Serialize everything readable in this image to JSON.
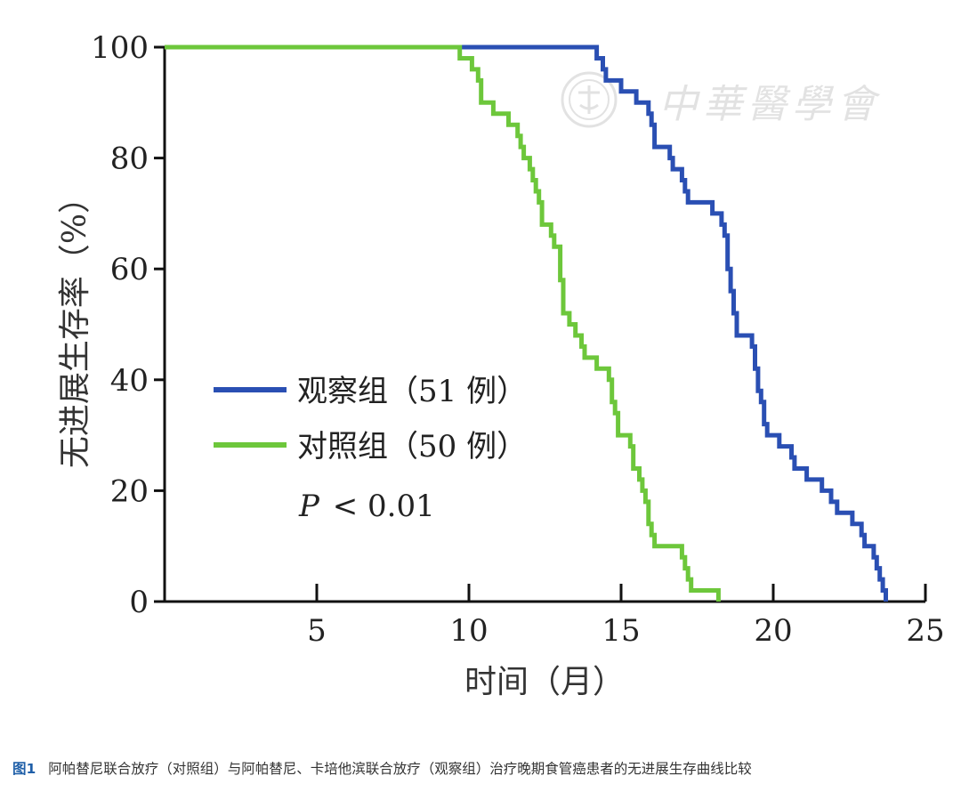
{
  "chart_data": {
    "type": "line",
    "step": true,
    "xlabel": "时间（月）",
    "ylabel": "无进展生存率（%）",
    "xlim": [
      0,
      25
    ],
    "ylim": [
      0,
      100
    ],
    "xticks": [
      5,
      10,
      15,
      20,
      25
    ],
    "yticks": [
      0,
      20,
      40,
      60,
      80,
      100
    ],
    "xtick_labels": [
      "5",
      "10",
      "15",
      "20",
      "25"
    ],
    "ytick_labels": [
      "0",
      "20",
      "40",
      "60",
      "80",
      "100"
    ],
    "legend_position": "center-left",
    "annotation": {
      "p_label": "P",
      "p_rest": "< 0.01"
    },
    "series": [
      {
        "name": "观察组（51 例）",
        "color": "#2a4fb3",
        "points": [
          [
            0,
            100
          ],
          [
            14.2,
            100
          ],
          [
            14.2,
            98
          ],
          [
            14.4,
            98
          ],
          [
            14.4,
            96
          ],
          [
            14.5,
            96
          ],
          [
            14.5,
            94
          ],
          [
            15.0,
            94
          ],
          [
            15.0,
            92
          ],
          [
            15.5,
            92
          ],
          [
            15.5,
            90
          ],
          [
            15.9,
            90
          ],
          [
            15.9,
            88
          ],
          [
            16.0,
            88
          ],
          [
            16.0,
            86
          ],
          [
            16.1,
            86
          ],
          [
            16.1,
            84
          ],
          [
            16.1,
            82
          ],
          [
            16.6,
            82
          ],
          [
            16.6,
            80
          ],
          [
            16.7,
            80
          ],
          [
            16.7,
            78
          ],
          [
            17.0,
            78
          ],
          [
            17.0,
            76
          ],
          [
            17.1,
            76
          ],
          [
            17.1,
            74
          ],
          [
            17.2,
            74
          ],
          [
            17.2,
            72
          ],
          [
            18.0,
            72
          ],
          [
            18.0,
            70
          ],
          [
            18.3,
            70
          ],
          [
            18.3,
            68
          ],
          [
            18.4,
            68
          ],
          [
            18.4,
            66
          ],
          [
            18.5,
            66
          ],
          [
            18.5,
            64
          ],
          [
            18.5,
            62
          ],
          [
            18.5,
            60
          ],
          [
            18.6,
            60
          ],
          [
            18.6,
            58
          ],
          [
            18.6,
            56
          ],
          [
            18.7,
            56
          ],
          [
            18.7,
            54
          ],
          [
            18.7,
            52
          ],
          [
            18.8,
            52
          ],
          [
            18.8,
            50
          ],
          [
            18.8,
            48
          ],
          [
            19.3,
            48
          ],
          [
            19.3,
            46
          ],
          [
            19.4,
            46
          ],
          [
            19.4,
            44
          ],
          [
            19.4,
            42
          ],
          [
            19.5,
            42
          ],
          [
            19.5,
            40
          ],
          [
            19.5,
            38
          ],
          [
            19.6,
            38
          ],
          [
            19.6,
            36
          ],
          [
            19.7,
            36
          ],
          [
            19.7,
            34
          ],
          [
            19.7,
            32
          ],
          [
            19.8,
            32
          ],
          [
            19.8,
            30
          ],
          [
            20.2,
            30
          ],
          [
            20.2,
            28
          ],
          [
            20.6,
            28
          ],
          [
            20.6,
            26
          ],
          [
            20.7,
            26
          ],
          [
            20.7,
            24
          ],
          [
            21.1,
            24
          ],
          [
            21.1,
            22
          ],
          [
            21.6,
            22
          ],
          [
            21.6,
            20
          ],
          [
            21.9,
            20
          ],
          [
            21.9,
            18
          ],
          [
            22.1,
            18
          ],
          [
            22.1,
            16
          ],
          [
            22.6,
            16
          ],
          [
            22.6,
            14
          ],
          [
            22.9,
            14
          ],
          [
            22.9,
            12
          ],
          [
            23.0,
            12
          ],
          [
            23.0,
            10
          ],
          [
            23.3,
            10
          ],
          [
            23.3,
            8
          ],
          [
            23.4,
            8
          ],
          [
            23.4,
            6
          ],
          [
            23.5,
            6
          ],
          [
            23.5,
            4
          ],
          [
            23.6,
            4
          ],
          [
            23.6,
            2
          ],
          [
            23.7,
            2
          ],
          [
            23.7,
            0
          ]
        ]
      },
      {
        "name": "对照组（50 例）",
        "color": "#6dc73b",
        "points": [
          [
            0,
            100
          ],
          [
            9.7,
            100
          ],
          [
            9.7,
            98
          ],
          [
            10.1,
            98
          ],
          [
            10.1,
            96
          ],
          [
            10.3,
            96
          ],
          [
            10.3,
            94
          ],
          [
            10.4,
            94
          ],
          [
            10.4,
            92
          ],
          [
            10.4,
            90
          ],
          [
            10.8,
            90
          ],
          [
            10.8,
            88
          ],
          [
            11.3,
            88
          ],
          [
            11.3,
            86
          ],
          [
            11.6,
            86
          ],
          [
            11.6,
            84
          ],
          [
            11.7,
            84
          ],
          [
            11.7,
            82
          ],
          [
            11.8,
            82
          ],
          [
            11.8,
            80
          ],
          [
            12.0,
            80
          ],
          [
            12.0,
            78
          ],
          [
            12.1,
            78
          ],
          [
            12.1,
            76
          ],
          [
            12.2,
            76
          ],
          [
            12.2,
            74
          ],
          [
            12.3,
            74
          ],
          [
            12.3,
            72
          ],
          [
            12.4,
            72
          ],
          [
            12.4,
            70
          ],
          [
            12.4,
            68
          ],
          [
            12.7,
            68
          ],
          [
            12.7,
            66
          ],
          [
            12.8,
            66
          ],
          [
            12.8,
            64
          ],
          [
            13.0,
            64
          ],
          [
            13.0,
            62
          ],
          [
            13.0,
            60
          ],
          [
            13.0,
            58
          ],
          [
            13.1,
            58
          ],
          [
            13.1,
            56
          ],
          [
            13.1,
            54
          ],
          [
            13.1,
            52
          ],
          [
            13.3,
            52
          ],
          [
            13.3,
            50
          ],
          [
            13.5,
            50
          ],
          [
            13.5,
            48
          ],
          [
            13.7,
            48
          ],
          [
            13.7,
            46
          ],
          [
            13.8,
            46
          ],
          [
            13.8,
            44
          ],
          [
            14.2,
            44
          ],
          [
            14.2,
            42
          ],
          [
            14.6,
            42
          ],
          [
            14.6,
            40
          ],
          [
            14.7,
            40
          ],
          [
            14.7,
            38
          ],
          [
            14.7,
            36
          ],
          [
            14.8,
            36
          ],
          [
            14.8,
            34
          ],
          [
            14.9,
            34
          ],
          [
            14.9,
            32
          ],
          [
            14.9,
            30
          ],
          [
            15.3,
            30
          ],
          [
            15.3,
            28
          ],
          [
            15.4,
            28
          ],
          [
            15.4,
            26
          ],
          [
            15.4,
            24
          ],
          [
            15.6,
            24
          ],
          [
            15.6,
            22
          ],
          [
            15.7,
            22
          ],
          [
            15.7,
            20
          ],
          [
            15.8,
            20
          ],
          [
            15.8,
            18
          ],
          [
            15.9,
            18
          ],
          [
            15.9,
            16
          ],
          [
            15.9,
            14
          ],
          [
            16.0,
            14
          ],
          [
            16.0,
            12
          ],
          [
            16.1,
            12
          ],
          [
            16.1,
            10
          ],
          [
            17.0,
            10
          ],
          [
            17.0,
            8
          ],
          [
            17.1,
            8
          ],
          [
            17.1,
            6
          ],
          [
            17.2,
            6
          ],
          [
            17.2,
            4
          ],
          [
            17.3,
            4
          ],
          [
            17.3,
            2
          ],
          [
            18.2,
            2
          ],
          [
            18.2,
            0
          ]
        ]
      }
    ]
  },
  "watermark": {
    "text": "中華醫學會"
  },
  "caption": {
    "label": "图1",
    "text": "阿帕替尼联合放疗（对照组）与阿帕替尼、卡培他滨联合放疗（观察组）治疗晚期食管癌患者的无进展生存曲线比较"
  }
}
